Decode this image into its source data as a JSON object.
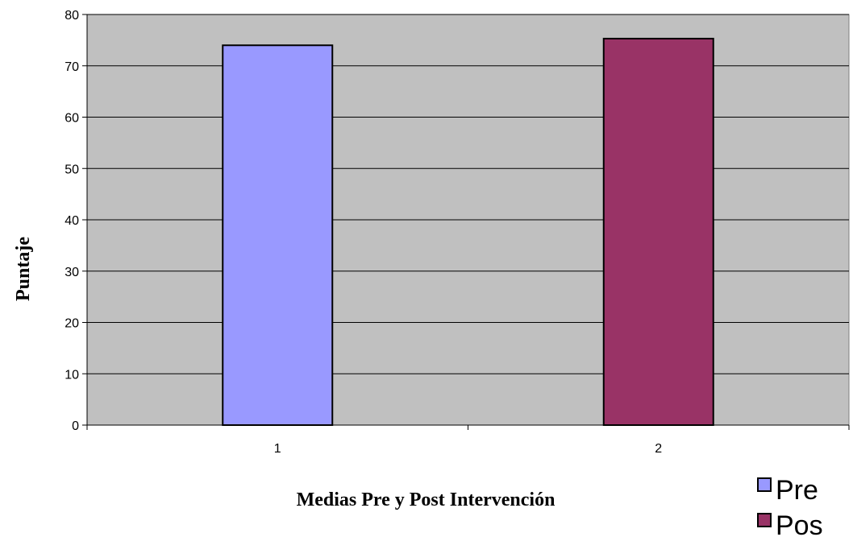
{
  "chart_data": {
    "type": "bar",
    "title": "",
    "xlabel": "Medias Pre y Post Intervención",
    "ylabel": "Puntaje",
    "categories": [
      "1",
      "2"
    ],
    "series": [
      {
        "name": "Pre",
        "color": "#9999ff",
        "values": [
          74,
          null
        ]
      },
      {
        "name": "Pos",
        "color": "#993366",
        "values": [
          null,
          75.3
        ]
      }
    ],
    "ylim": [
      0,
      80
    ],
    "yticks": [
      0,
      10,
      20,
      30,
      40,
      50,
      60,
      70,
      80
    ],
    "grid": true,
    "plot_background": "#c0c0c0",
    "legend_position": "bottom-right"
  }
}
